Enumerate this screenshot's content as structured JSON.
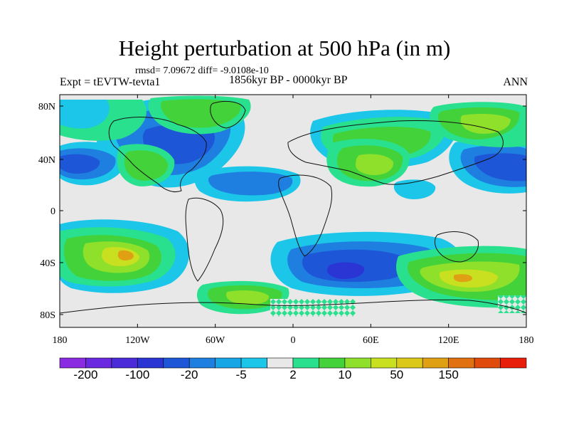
{
  "title": "Height perturbation at 500 hPa (in m)",
  "stats": "rmsd= 7.09672 diff= -9.0108e-10",
  "experiment": "Expt = tEVTW-tevta1",
  "period": "1856kyr BP - 0000kyr BP",
  "season": "ANN",
  "axes": {
    "x_ticks": [
      "180",
      "120W",
      "60W",
      "0",
      "60E",
      "120E",
      "180"
    ],
    "y_ticks": [
      "80N",
      "40N",
      "0",
      "40S",
      "80S"
    ]
  },
  "colorbar": {
    "colors": [
      "#8a2be2",
      "#6a28e0",
      "#4b2bd9",
      "#2a35d4",
      "#1e56d8",
      "#1f7fe0",
      "#16a6e6",
      "#1cc6e8",
      "#e8e8e8",
      "#28e08e",
      "#44d23a",
      "#8ee02a",
      "#c8e020",
      "#dcc818",
      "#e0a014",
      "#e07010",
      "#e04a0a",
      "#e81e0a"
    ],
    "labels": [
      "-200",
      "-100",
      "-20",
      "-5",
      "2",
      "10",
      "50",
      "150"
    ]
  },
  "legend_colors": {
    "neutral": "#e8e8e8",
    "light_blue": "#1cc6e8",
    "mid_blue": "#1f7fe0",
    "deep_blue": "#1e56d8",
    "light_green": "#28e08e",
    "green": "#44d23a",
    "yellow_green": "#8ee02a",
    "yellow": "#c8e020",
    "orange": "#e0a014"
  }
}
